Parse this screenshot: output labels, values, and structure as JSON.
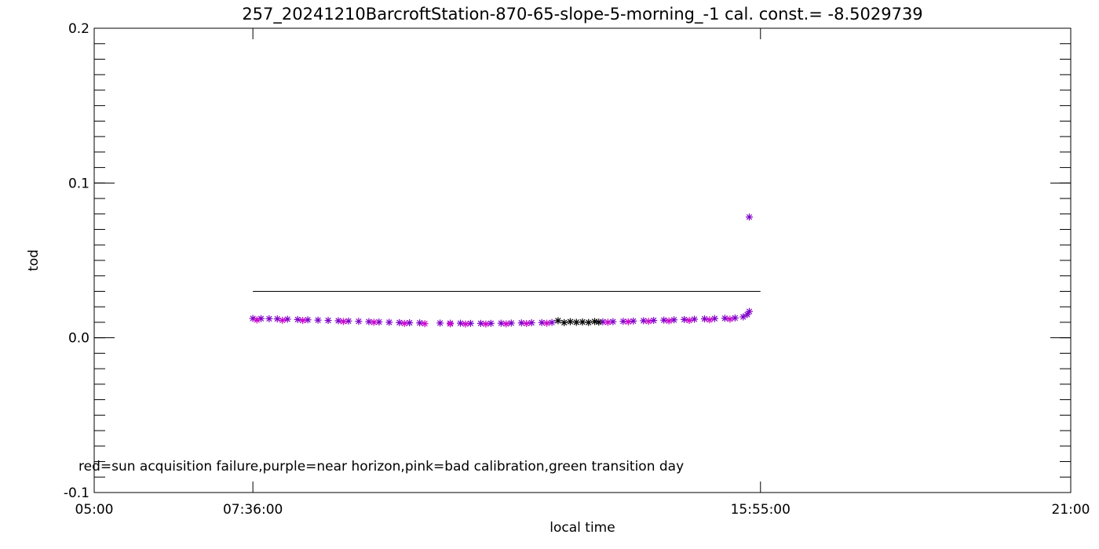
{
  "chart_data": {
    "type": "scatter",
    "title": "257_20241210BarcroftStation-870-65-slope-5-morning_-1 cal. const.= -8.5029739",
    "xlabel": "local time",
    "ylabel": "tod",
    "xlim": [
      "05:00",
      "21:00"
    ],
    "ylim": [
      -0.1,
      0.2
    ],
    "x_ticks": [
      "05:00",
      "07:36:00",
      "15:55:00",
      "21:00"
    ],
    "y_ticks": [
      "-0.1",
      "0.0",
      "0.1",
      "0.2"
    ],
    "y_tick_values": [
      -0.1,
      0.0,
      0.1,
      0.2
    ],
    "x_tick_values": [
      "05:00",
      "07:36",
      "15:55",
      "21:00"
    ],
    "annotation": "red=sun acquisition failure,purple=near horizon,pink=bad calibration,green transition day",
    "reference_line": {
      "x_start": "07:36",
      "x_end": "15:55",
      "y": 0.03
    },
    "colors": {
      "purple": "#7f00c8",
      "magenta": "#cc00cc",
      "black": "#000000",
      "axis": "#000000"
    },
    "series": [
      {
        "color": "purple",
        "points": [
          [
            "07:36",
            0.0125
          ],
          [
            "07:44",
            0.0124
          ],
          [
            "07:52",
            0.0123
          ],
          [
            "08:00",
            0.0122
          ],
          [
            "08:10",
            0.012
          ],
          [
            "08:20",
            0.0118
          ],
          [
            "08:30",
            0.0116
          ],
          [
            "08:40",
            0.0114
          ],
          [
            "08:50",
            0.0112
          ],
          [
            "09:00",
            0.011
          ],
          [
            "09:10",
            0.0108
          ],
          [
            "09:20",
            0.0106
          ],
          [
            "09:30",
            0.0104
          ],
          [
            "09:40",
            0.0102
          ],
          [
            "09:50",
            0.01
          ],
          [
            "10:00",
            0.0098
          ],
          [
            "10:10",
            0.0097
          ],
          [
            "10:20",
            0.0096
          ],
          [
            "10:40",
            0.0095
          ],
          [
            "10:50",
            0.0094
          ],
          [
            "11:00",
            0.0094
          ],
          [
            "11:10",
            0.0093
          ],
          [
            "11:20",
            0.0093
          ],
          [
            "11:30",
            0.0093
          ],
          [
            "11:40",
            0.0094
          ],
          [
            "11:50",
            0.0095
          ],
          [
            "12:00",
            0.0096
          ],
          [
            "12:10",
            0.0097
          ],
          [
            "12:20",
            0.0098
          ],
          [
            "12:30",
            0.0099
          ],
          [
            "13:20",
            0.0103
          ],
          [
            "13:30",
            0.0104
          ],
          [
            "13:40",
            0.0106
          ],
          [
            "13:50",
            0.0108
          ],
          [
            "14:00",
            0.011
          ],
          [
            "14:10",
            0.0112
          ],
          [
            "14:20",
            0.0114
          ],
          [
            "14:30",
            0.0116
          ],
          [
            "14:40",
            0.0118
          ],
          [
            "14:50",
            0.012
          ],
          [
            "15:00",
            0.0122
          ],
          [
            "15:10",
            0.0124
          ],
          [
            "15:20",
            0.0126
          ],
          [
            "15:30",
            0.0128
          ],
          [
            "15:38",
            0.0135
          ],
          [
            "15:42",
            0.015
          ],
          [
            "15:44",
            0.017
          ],
          [
            "15:44",
            0.078
          ]
        ]
      },
      {
        "color": "magenta",
        "points": [
          [
            "07:40",
            0.0115
          ],
          [
            "08:05",
            0.0113
          ],
          [
            "08:25",
            0.0112
          ],
          [
            "09:05",
            0.0105
          ],
          [
            "09:35",
            0.01
          ],
          [
            "10:05",
            0.0093
          ],
          [
            "10:25",
            0.0091
          ],
          [
            "10:50",
            0.009
          ],
          [
            "11:05",
            0.0089
          ],
          [
            "11:25",
            0.0089
          ],
          [
            "11:45",
            0.009
          ],
          [
            "12:05",
            0.0092
          ],
          [
            "12:25",
            0.0094
          ],
          [
            "13:25",
            0.01
          ],
          [
            "13:45",
            0.0103
          ],
          [
            "14:05",
            0.0106
          ],
          [
            "14:25",
            0.0109
          ],
          [
            "14:45",
            0.0112
          ],
          [
            "15:05",
            0.0116
          ],
          [
            "15:25",
            0.012
          ]
        ]
      },
      {
        "color": "black",
        "points": [
          [
            "12:36",
            0.011
          ],
          [
            "12:42",
            0.0098
          ],
          [
            "12:48",
            0.0104
          ],
          [
            "12:54",
            0.01
          ],
          [
            "13:00",
            0.0102
          ],
          [
            "13:06",
            0.0099
          ],
          [
            "13:12",
            0.0105
          ],
          [
            "13:16",
            0.0101
          ]
        ]
      }
    ]
  }
}
